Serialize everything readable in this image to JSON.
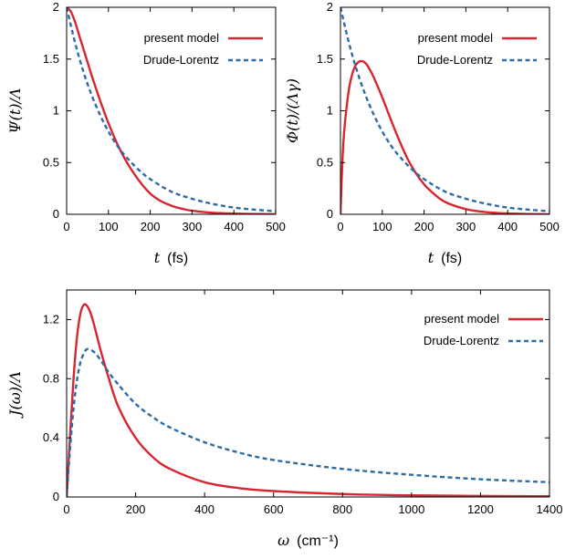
{
  "chart_data": [
    {
      "type": "line",
      "xlabel": "t",
      "xunit": "(fs)",
      "ylabel": "Ψ(t)/Λ",
      "xlim": [
        0,
        500
      ],
      "ylim": [
        0,
        2
      ],
      "xticks": [
        0,
        100,
        200,
        300,
        400,
        500
      ],
      "yticks": [
        0,
        0.5,
        1,
        1.5,
        2
      ],
      "xtick_labels": [
        "0",
        "100",
        "200",
        "300",
        "400",
        "500"
      ],
      "ytick_labels": [
        "0",
        "0.5",
        "1",
        "1.5",
        "2"
      ],
      "legend": "top-right",
      "series": [
        {
          "name": "present model",
          "color": "#d7262f",
          "style": "solid",
          "x": [
            0,
            10,
            20,
            30,
            40,
            50,
            60,
            80,
            100,
            120,
            140,
            160,
            180,
            200,
            220,
            240,
            260,
            280,
            300,
            350,
            400,
            450,
            500
          ],
          "y": [
            2.0,
            1.96,
            1.86,
            1.73,
            1.6,
            1.47,
            1.34,
            1.1,
            0.88,
            0.69,
            0.53,
            0.4,
            0.29,
            0.2,
            0.14,
            0.1,
            0.07,
            0.05,
            0.035,
            0.015,
            0.007,
            0.003,
            0.001
          ]
        },
        {
          "name": "Drude-Lorentz",
          "color": "#2e6ba6",
          "style": "dashed",
          "x": [
            0,
            20,
            40,
            60,
            80,
            100,
            125,
            150,
            175,
            200,
            250,
            300,
            350,
            400,
            450,
            500
          ],
          "y": [
            2.0,
            1.66,
            1.38,
            1.15,
            0.96,
            0.8,
            0.64,
            0.52,
            0.42,
            0.34,
            0.22,
            0.15,
            0.1,
            0.065,
            0.045,
            0.03
          ]
        }
      ]
    },
    {
      "type": "line",
      "xlabel": "t",
      "xunit": "(fs)",
      "ylabel": "Φ(t)/(Λγ)",
      "xlim": [
        0,
        500
      ],
      "ylim": [
        0,
        2
      ],
      "xticks": [
        0,
        100,
        200,
        300,
        400,
        500
      ],
      "yticks": [
        0,
        0.5,
        1,
        1.5,
        2
      ],
      "xtick_labels": [
        "0",
        "100",
        "200",
        "300",
        "400",
        "500"
      ],
      "ytick_labels": [
        "0",
        "0.5",
        "1",
        "1.5",
        "2"
      ],
      "legend": "top-right",
      "series": [
        {
          "name": "present model",
          "color": "#d7262f",
          "style": "solid",
          "x": [
            0,
            5,
            10,
            20,
            30,
            40,
            50,
            60,
            70,
            80,
            100,
            120,
            140,
            160,
            180,
            200,
            220,
            250,
            300,
            350,
            400,
            450,
            500
          ],
          "y": [
            0,
            0.55,
            0.85,
            1.2,
            1.38,
            1.46,
            1.48,
            1.46,
            1.4,
            1.32,
            1.13,
            0.92,
            0.72,
            0.54,
            0.4,
            0.29,
            0.21,
            0.12,
            0.05,
            0.02,
            0.008,
            0.003,
            0.001
          ]
        },
        {
          "name": "Drude-Lorentz",
          "color": "#2e6ba6",
          "style": "dashed",
          "x": [
            0,
            20,
            40,
            60,
            80,
            100,
            125,
            150,
            175,
            200,
            250,
            300,
            350,
            400,
            450,
            500
          ],
          "y": [
            2.0,
            1.66,
            1.38,
            1.15,
            0.96,
            0.8,
            0.64,
            0.52,
            0.42,
            0.34,
            0.22,
            0.15,
            0.1,
            0.065,
            0.045,
            0.03
          ]
        }
      ]
    },
    {
      "type": "line",
      "xlabel": "ω",
      "xunit": "(cm⁻¹)",
      "ylabel": "J(ω)/Λ",
      "xlim": [
        0,
        1400
      ],
      "ylim": [
        0,
        1.4
      ],
      "xticks": [
        0,
        200,
        400,
        600,
        800,
        1000,
        1200,
        1400
      ],
      "yticks": [
        0,
        0.4,
        0.8,
        1.2
      ],
      "xtick_labels": [
        "0",
        "200",
        "400",
        "600",
        "800",
        "1000",
        "1200",
        "1400"
      ],
      "ytick_labels": [
        "0",
        "0.4",
        "0.8",
        "1.2"
      ],
      "legend": "top-right",
      "series": [
        {
          "name": "present model",
          "color": "#d7262f",
          "style": "solid",
          "x": [
            0,
            10,
            20,
            30,
            40,
            50,
            60,
            70,
            80,
            100,
            120,
            150,
            200,
            250,
            300,
            400,
            500,
            600,
            800,
            1000,
            1200,
            1400
          ],
          "y": [
            0,
            0.42,
            0.8,
            1.08,
            1.24,
            1.3,
            1.29,
            1.24,
            1.16,
            0.98,
            0.82,
            0.61,
            0.4,
            0.27,
            0.19,
            0.1,
            0.06,
            0.04,
            0.02,
            0.011,
            0.007,
            0.005
          ]
        },
        {
          "name": "Drude-Lorentz",
          "color": "#2e6ba6",
          "style": "dashed",
          "x": [
            0,
            10,
            20,
            30,
            40,
            50,
            60,
            80,
            100,
            120,
            150,
            200,
            250,
            300,
            400,
            500,
            600,
            800,
            1000,
            1200,
            1400
          ],
          "y": [
            0,
            0.33,
            0.6,
            0.79,
            0.91,
            0.97,
            1.0,
            0.98,
            0.92,
            0.85,
            0.76,
            0.63,
            0.54,
            0.47,
            0.37,
            0.3,
            0.25,
            0.19,
            0.15,
            0.12,
            0.1
          ]
        }
      ]
    }
  ]
}
